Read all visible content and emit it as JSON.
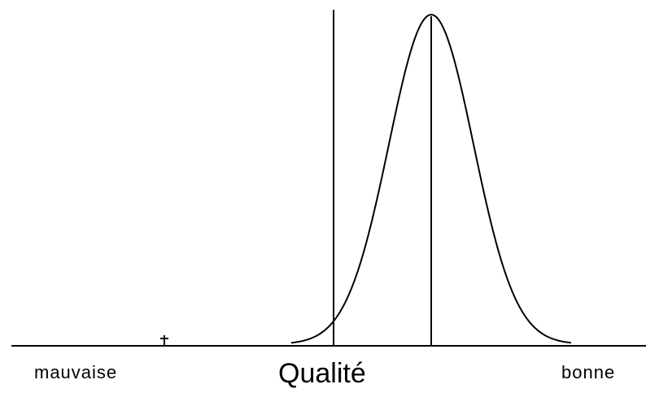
{
  "labels": {
    "left": "mauvaise",
    "center": "Qualité",
    "right": "bonne"
  },
  "colors": {
    "ink": "#000000",
    "background": "#ffffff"
  }
}
